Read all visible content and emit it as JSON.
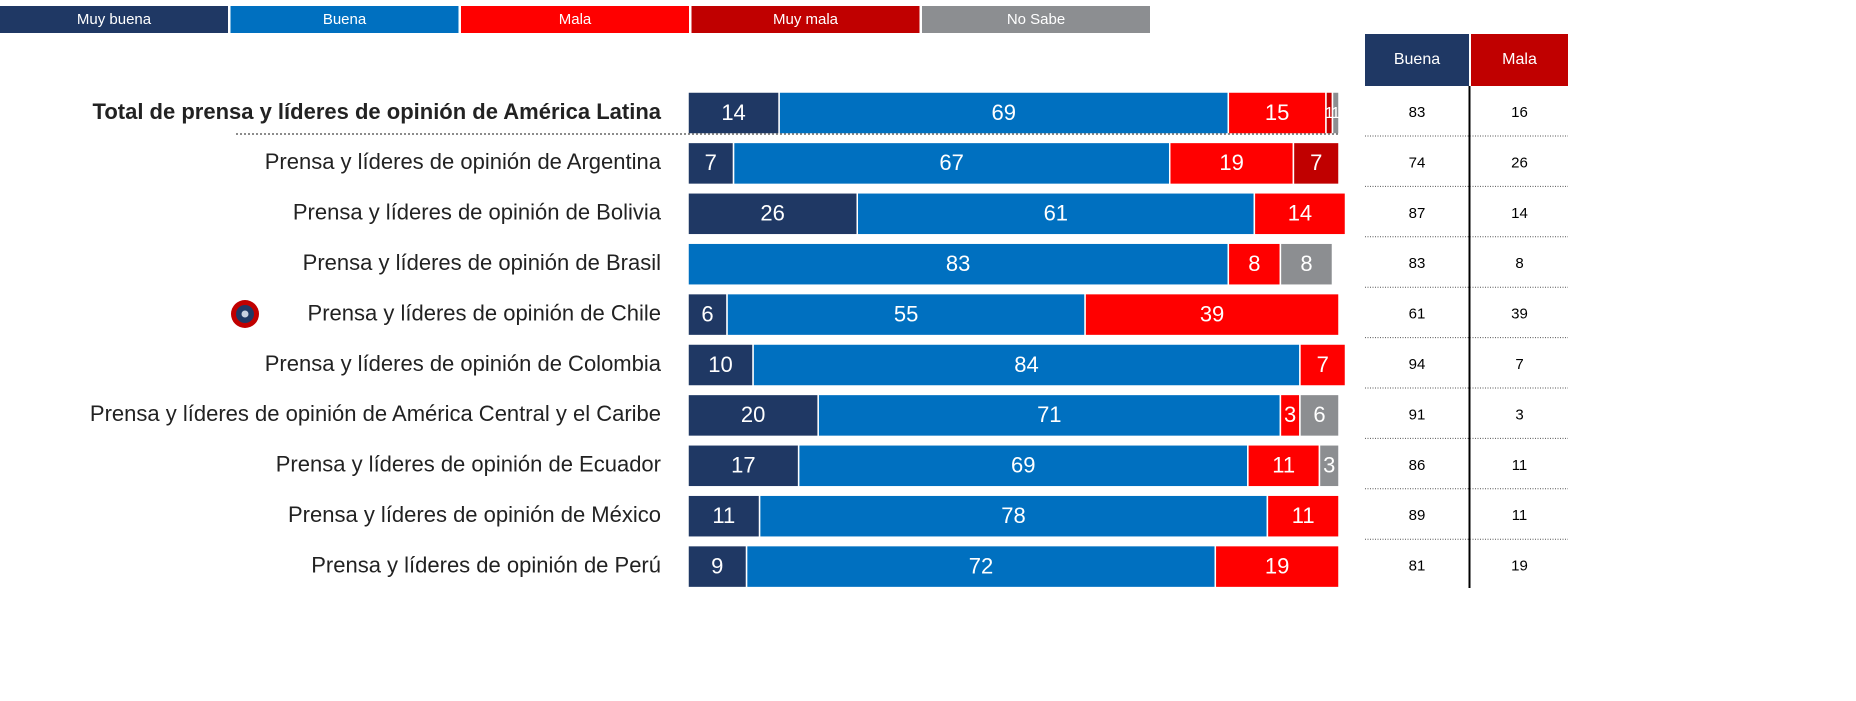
{
  "chart_data": {
    "type": "stacked-bar",
    "orientation": "horizontal",
    "categories": [
      "Total de prensa y líderes de opinión de América Latina",
      "Prensa y líderes de opinión de Argentina",
      "Prensa y líderes de opinión de Bolivia",
      "Prensa y líderes de opinión de Brasil",
      "Prensa y líderes de opinión de Chile",
      "Prensa y líderes de opinión de Colombia",
      "Prensa y líderes de opinión de América Central y el Caribe",
      "Prensa y líderes de opinión de Ecuador",
      "Prensa y líderes de opinión de México",
      "Prensa y líderes de opinión de Perú"
    ],
    "series": [
      {
        "name": "Muy buena",
        "color": "#1f3864",
        "values": [
          14,
          7,
          26,
          null,
          6,
          10,
          20,
          17,
          11,
          9
        ]
      },
      {
        "name": "Buena",
        "color": "#0070c0",
        "values": [
          69,
          67,
          61,
          83,
          55,
          84,
          71,
          69,
          78,
          72
        ]
      },
      {
        "name": "Mala",
        "color": "#ff0000",
        "values": [
          15,
          19,
          14,
          8,
          39,
          7,
          3,
          11,
          11,
          19
        ]
      },
      {
        "name": "Muy mala",
        "color": "#c00000",
        "values": [
          1,
          7,
          null,
          null,
          null,
          null,
          null,
          null,
          null,
          null
        ]
      },
      {
        "name": "No Sabe",
        "color": "#8c8e91",
        "values": [
          1,
          null,
          null,
          8,
          null,
          null,
          6,
          3,
          null,
          null
        ]
      }
    ],
    "summary": {
      "headers": [
        "Buena",
        "Mala"
      ],
      "header_colors": [
        "#1f3864",
        "#c00000"
      ],
      "rows": [
        [
          83,
          16
        ],
        [
          74,
          26
        ],
        [
          87,
          14
        ],
        [
          83,
          8
        ],
        [
          61,
          39
        ],
        [
          94,
          7
        ],
        [
          91,
          3
        ],
        [
          86,
          11
        ],
        [
          89,
          11
        ],
        [
          81,
          19
        ]
      ]
    }
  }
}
